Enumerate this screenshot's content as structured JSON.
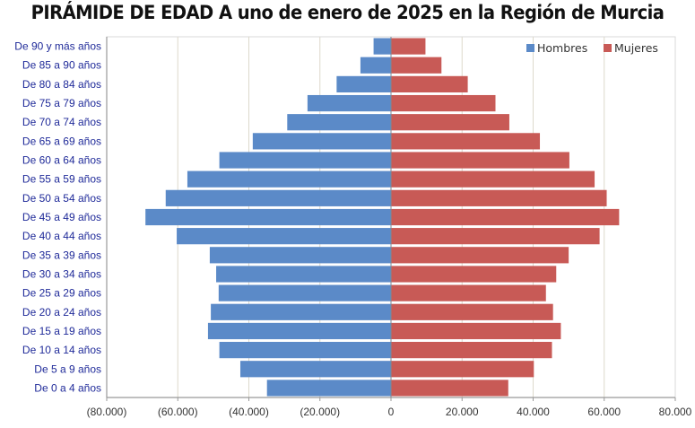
{
  "chart_data": {
    "type": "bar",
    "orientation": "horizontal",
    "subtype": "population-pyramid",
    "title": "PIRÁMIDE DE EDAD A uno de enero de 2025 en la Región de Murcia",
    "xlabel": "",
    "ylabel": "",
    "xlim": [
      -80000,
      80000
    ],
    "xticks": [
      -80000,
      -60000,
      -40000,
      -20000,
      0,
      20000,
      40000,
      60000,
      80000
    ],
    "xtick_labels": [
      "(80.000)",
      "(60.000)",
      "(40.000)",
      "(20.000)",
      "0",
      "20.000",
      "40.000",
      "60.000",
      "80.000"
    ],
    "grid": true,
    "legend_position": "top-right",
    "categories": [
      "De 90 y más años",
      "De 85 a 90 años",
      "De 80 a 84 años",
      "De 75 a 79 años",
      "De 70 a 74 años",
      "De 65 a 69 años",
      "De 60 a 64 años",
      "De 55 a 59 años",
      "De 50 a 54 años",
      "De 45 a 49 años",
      "De 40 a 44 años",
      "De 35 a 39 años",
      "De 30 a 34 años",
      "De 25 a 29 años",
      "De 20 a 24 años",
      "De 15 a 19 años",
      "De 10 a 14 años",
      "De 5 a 9 años",
      "De 0 a 4 años"
    ],
    "series": [
      {
        "name": "Hombres",
        "color": "#5b8ac8",
        "values": [
          -4900,
          -8600,
          -15300,
          -23500,
          -29200,
          -38900,
          -48300,
          -57300,
          -63400,
          -69100,
          -60300,
          -51000,
          -49200,
          -48500,
          -50700,
          -51500,
          -48300,
          -42400,
          -34900
        ]
      },
      {
        "name": "Mujeres",
        "color": "#c85a56",
        "values": [
          9700,
          14200,
          21600,
          29400,
          33300,
          41900,
          50200,
          57300,
          60700,
          64200,
          58700,
          50000,
          46500,
          43600,
          45600,
          47800,
          45300,
          40200,
          33000
        ]
      }
    ]
  },
  "colors": {
    "category_label": "#1f2a99",
    "gridline": "#ddd9cc",
    "axis": "#999999"
  }
}
